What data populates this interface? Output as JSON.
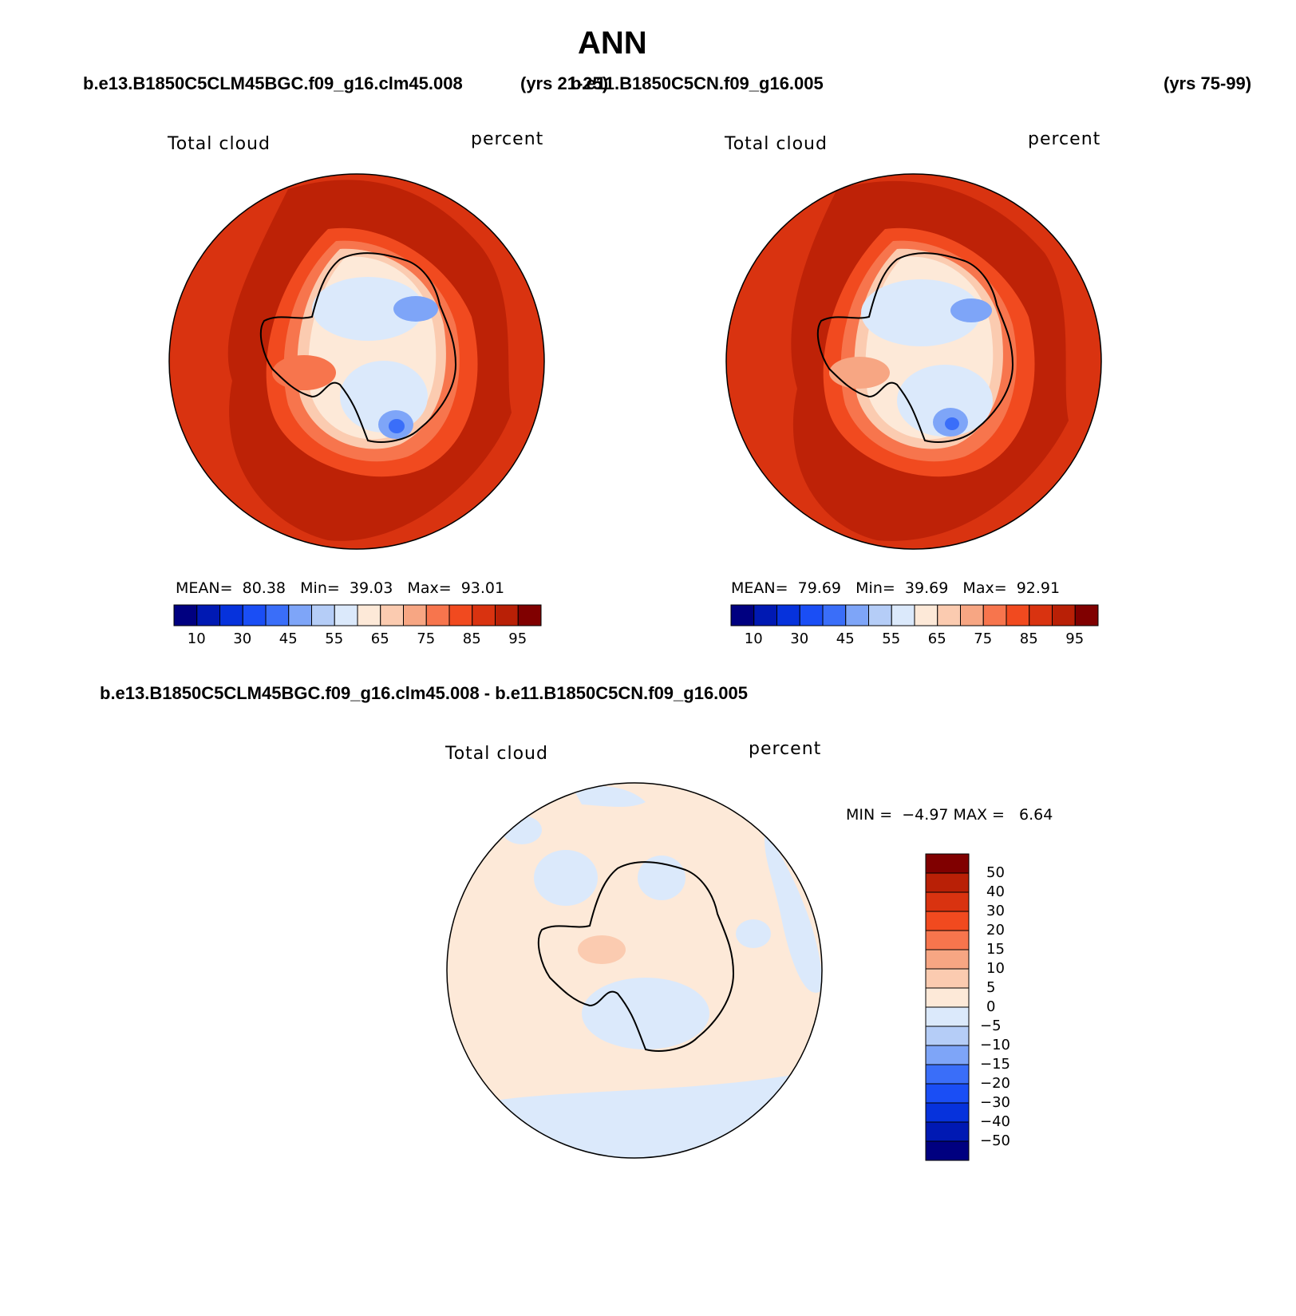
{
  "title": "ANN",
  "header": {
    "case1": "b.e13.B1850C5CLM45BGC.f09_g16.clm45.008",
    "years1": "(yrs 21-25)",
    "case2": "b.e11.B1850C5CN.f09_g16.005",
    "years2": "(yrs 75-99)"
  },
  "panels": [
    {
      "variable": "Total cloud",
      "units": "percent",
      "stats": {
        "mean_label": "MEAN=",
        "mean": "80.38",
        "min_label": "Min=",
        "min": "39.03",
        "max_label": "Max=",
        "max": "93.01"
      }
    },
    {
      "variable": "Total cloud",
      "units": "percent",
      "stats": {
        "mean_label": "MEAN=",
        "mean": "79.69",
        "min_label": "Min=",
        "min": "39.69",
        "max_label": "Max=",
        "max": "92.91"
      }
    }
  ],
  "diff": {
    "title": "b.e13.B1850C5CLM45BGC.f09_g16.clm45.008 - b.e11.B1850C5CN.f09_g16.005",
    "variable": "Total cloud",
    "units": "percent",
    "min_label": "MIN =",
    "min": "−4.97",
    "max_label": "MAX =",
    "max": "6.64"
  },
  "colorbar_abs": {
    "colors": [
      "#000080",
      "#0019b3",
      "#0632dc",
      "#1a4ef5",
      "#3a6ef9",
      "#7ea5f8",
      "#b5cdf7",
      "#dbe9fb",
      "#fde9d8",
      "#fbcbb0",
      "#f7a683",
      "#f7754d",
      "#f14a1f",
      "#d93310",
      "#b92006",
      "#800000"
    ],
    "labels": [
      "10",
      "30",
      "45",
      "55",
      "65",
      "75",
      "85",
      "95"
    ]
  },
  "colorbar_diff": {
    "colors": [
      "#800000",
      "#b92006",
      "#d93310",
      "#f14a1f",
      "#f7754d",
      "#f7a683",
      "#fbcbb0",
      "#fde9d8",
      "#dbe9fb",
      "#b5cdf7",
      "#7ea5f8",
      "#3a6ef9",
      "#1a4ef5",
      "#0632dc",
      "#0019b3",
      "#000080"
    ],
    "labels": [
      "50",
      "40",
      "30",
      "20",
      "15",
      "10",
      "5",
      "0",
      "−5",
      "−10",
      "−15",
      "−20",
      "−30",
      "−40",
      "−50"
    ]
  }
}
